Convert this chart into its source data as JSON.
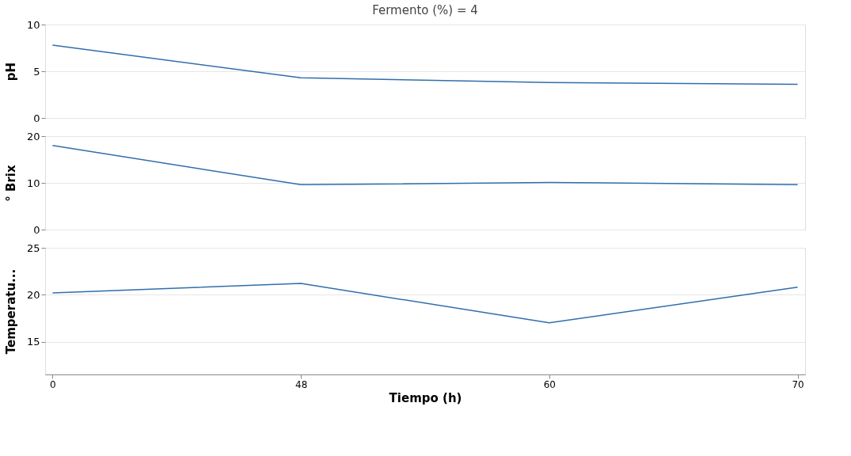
{
  "chart_data": [
    {
      "type": "line",
      "title": "Fermento (%) = 4",
      "ylabel": "pH",
      "categories": [
        "0",
        "48",
        "60",
        "70"
      ],
      "series": [
        {
          "color": "#2f6eac",
          "values": [
            7.8,
            4.3,
            3.8,
            3.6
          ]
        }
      ],
      "ylim": [
        0,
        10
      ],
      "yticks": [
        0,
        5,
        10
      ],
      "grid": "y",
      "tick_labels": "y",
      "line_style": "solid",
      "marker": "none"
    },
    {
      "type": "line",
      "ylabel": "° Brix",
      "categories": [
        "0",
        "48",
        "60",
        "70"
      ],
      "series": [
        {
          "color": "#2f6eac",
          "values": [
            18,
            9.6,
            10.1,
            9.6
          ]
        }
      ],
      "ylim": [
        0,
        20
      ],
      "yticks": [
        0,
        10,
        20
      ],
      "grid": "y",
      "tick_labels": "y",
      "line_style": "solid",
      "marker": "none"
    },
    {
      "type": "line",
      "ylabel": "Temperatu...",
      "xlabel": "Tiempo (h)",
      "categories": [
        "0",
        "48",
        "60",
        "70"
      ],
      "series": [
        {
          "color": "#2f6eac",
          "values": [
            20.2,
            21.2,
            17,
            20.8
          ]
        }
      ],
      "ylim": [
        11.5,
        25
      ],
      "yticks": [
        15,
        20,
        25
      ],
      "grid": "y",
      "line_style": "solid",
      "marker": "none"
    }
  ]
}
